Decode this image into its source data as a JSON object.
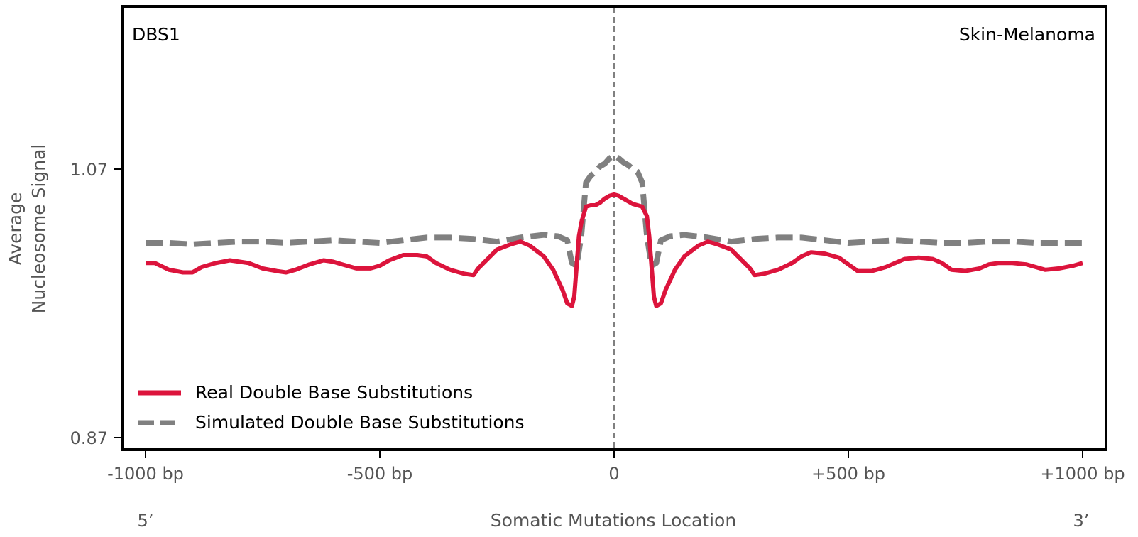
{
  "chart_data": {
    "type": "line",
    "signature_label": "DBS1",
    "cancer_type_label": "Skin-Melanoma",
    "xlabel": "Somatic Mutations Location",
    "ylabel_line1": "Average",
    "ylabel_line2": "Nucleosome Signal",
    "xlim": [
      -1000,
      1000
    ],
    "ylim": [
      0.86,
      1.19
    ],
    "x_ticks": [
      {
        "value": -1000,
        "label": "-1000 bp"
      },
      {
        "value": -500,
        "label": "-500 bp"
      },
      {
        "value": 0,
        "label": "0"
      },
      {
        "value": 500,
        "label": "+500 bp"
      },
      {
        "value": 1000,
        "label": "+1000 bp"
      }
    ],
    "y_ticks": [
      {
        "value": 0.87,
        "label": "0.87"
      },
      {
        "value": 1.07,
        "label": "1.07"
      }
    ],
    "end_labels": {
      "five_prime": "5’",
      "three_prime": "3’"
    },
    "center_line": {
      "x": 0,
      "style": "dashed",
      "color": "#808080"
    },
    "legend_position": "lower-left",
    "series": [
      {
        "name": "Real Double Base Substitutions",
        "color": "#dc143c",
        "style": "solid",
        "x": [
          -1000,
          -980,
          -950,
          -920,
          -900,
          -880,
          -850,
          -820,
          -800,
          -780,
          -750,
          -720,
          -700,
          -680,
          -650,
          -620,
          -600,
          -580,
          -550,
          -520,
          -500,
          -480,
          -450,
          -420,
          -400,
          -380,
          -350,
          -320,
          -300,
          -290,
          -270,
          -250,
          -220,
          -200,
          -180,
          -150,
          -130,
          -110,
          -100,
          -90,
          -85,
          -75,
          -70,
          -60,
          -50,
          -40,
          -30,
          -20,
          -10,
          0,
          10,
          20,
          30,
          40,
          50,
          60,
          70,
          75,
          85,
          90,
          100,
          110,
          130,
          150,
          180,
          200,
          220,
          250,
          270,
          290,
          300,
          320,
          350,
          380,
          400,
          420,
          450,
          480,
          500,
          520,
          550,
          580,
          600,
          620,
          650,
          680,
          700,
          720,
          750,
          780,
          800,
          820,
          850,
          880,
          900,
          920,
          950,
          980,
          1000
        ],
        "values": [
          1.0,
          1.0,
          0.995,
          0.993,
          0.993,
          0.997,
          1.0,
          1.002,
          1.001,
          1.0,
          0.996,
          0.994,
          0.993,
          0.995,
          0.999,
          1.002,
          1.001,
          0.999,
          0.996,
          0.996,
          0.998,
          1.002,
          1.006,
          1.006,
          1.005,
          1.0,
          0.995,
          0.992,
          0.991,
          0.996,
          1.003,
          1.01,
          1.014,
          1.016,
          1.013,
          1.005,
          0.995,
          0.98,
          0.97,
          0.968,
          0.975,
          1.02,
          1.03,
          1.042,
          1.043,
          1.043,
          1.045,
          1.048,
          1.05,
          1.051,
          1.05,
          1.048,
          1.046,
          1.044,
          1.043,
          1.042,
          1.035,
          1.02,
          0.975,
          0.968,
          0.97,
          0.98,
          0.995,
          1.005,
          1.013,
          1.016,
          1.014,
          1.01,
          1.003,
          0.996,
          0.991,
          0.992,
          0.995,
          1.0,
          1.005,
          1.008,
          1.007,
          1.004,
          0.999,
          0.994,
          0.994,
          0.997,
          1.0,
          1.003,
          1.004,
          1.003,
          1.0,
          0.995,
          0.994,
          0.996,
          0.999,
          1.0,
          1.0,
          0.999,
          0.997,
          0.995,
          0.996,
          0.998,
          1.0
        ]
      },
      {
        "name": "Simulated Double Base Substitutions",
        "color": "#808080",
        "style": "dashed",
        "x": [
          -1000,
          -950,
          -900,
          -850,
          -800,
          -750,
          -700,
          -650,
          -600,
          -550,
          -500,
          -450,
          -400,
          -350,
          -300,
          -250,
          -200,
          -150,
          -120,
          -100,
          -90,
          -80,
          -70,
          -60,
          -50,
          -40,
          -30,
          -20,
          -10,
          0,
          10,
          20,
          30,
          40,
          50,
          60,
          70,
          80,
          90,
          100,
          120,
          150,
          200,
          250,
          300,
          350,
          400,
          450,
          500,
          550,
          600,
          650,
          700,
          750,
          800,
          850,
          900,
          950,
          1000
        ],
        "values": [
          1.015,
          1.015,
          1.014,
          1.015,
          1.016,
          1.016,
          1.015,
          1.016,
          1.017,
          1.016,
          1.015,
          1.017,
          1.019,
          1.019,
          1.018,
          1.016,
          1.019,
          1.021,
          1.02,
          1.017,
          1.0,
          0.998,
          1.02,
          1.06,
          1.065,
          1.068,
          1.072,
          1.074,
          1.078,
          1.08,
          1.078,
          1.075,
          1.073,
          1.07,
          1.068,
          1.06,
          1.02,
          0.998,
          1.0,
          1.017,
          1.02,
          1.021,
          1.019,
          1.016,
          1.018,
          1.019,
          1.019,
          1.017,
          1.015,
          1.016,
          1.017,
          1.016,
          1.015,
          1.015,
          1.016,
          1.016,
          1.015,
          1.015,
          1.015
        ]
      }
    ]
  }
}
